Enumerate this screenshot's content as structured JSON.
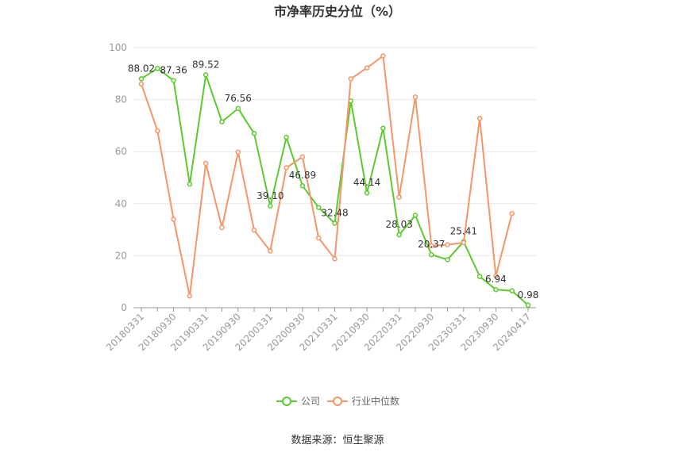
{
  "chart_data": {
    "type": "line",
    "title": "市净率历史分位（%）",
    "source": "数据来源：恒生聚源",
    "ylim": [
      0,
      100
    ],
    "yticks": [
      0,
      20,
      40,
      60,
      80,
      100
    ],
    "x": [
      "20180331",
      "20180630",
      "20180930",
      "20181231",
      "20190331",
      "20190630",
      "20190930",
      "20191231",
      "20200331",
      "20200630",
      "20200930",
      "20201231",
      "20210331",
      "20210630",
      "20210930",
      "20211231",
      "20220331",
      "20220630",
      "20220930",
      "20221231",
      "20230331",
      "20230630",
      "20230930",
      "20231231",
      "20240417"
    ],
    "xtick_labels": [
      "20180331",
      "20180930",
      "20190331",
      "20190930",
      "20200331",
      "20200930",
      "20210331",
      "20210930",
      "20220331",
      "20220930",
      "20230331",
      "20230930",
      "20240417"
    ],
    "series": [
      {
        "name": "公司",
        "color": "#5cc92e",
        "values": [
          88.02,
          92,
          87.36,
          47.5,
          89.52,
          71.5,
          76.56,
          67,
          39.1,
          65.5,
          46.89,
          38.5,
          32.48,
          79.5,
          44.14,
          69,
          28.03,
          35.5,
          20.37,
          18.5,
          25.41,
          12,
          6.94,
          6.5,
          0.98
        ],
        "labels": {
          "0": "88.02",
          "2": "87.36",
          "4": "89.52",
          "6": "76.56",
          "8": "39.10",
          "10": "46.89",
          "12": "32.48",
          "14": "44.14",
          "16": "28.03",
          "18": "20.37",
          "20": "25.41",
          "22": "6.94",
          "24": "0.98"
        }
      },
      {
        "name": "行业中位数",
        "color": "#f4956a",
        "values": [
          86,
          68,
          34,
          4.5,
          55.5,
          30.8,
          59.8,
          29.8,
          21.8,
          53.8,
          58,
          26.8,
          18.8,
          88,
          92.2,
          96.8,
          42.5,
          81,
          23.8,
          24.2,
          25,
          72.8,
          12.2,
          36.2,
          null
        ]
      }
    ],
    "legend": {
      "position": "bottom"
    },
    "grid": true
  }
}
